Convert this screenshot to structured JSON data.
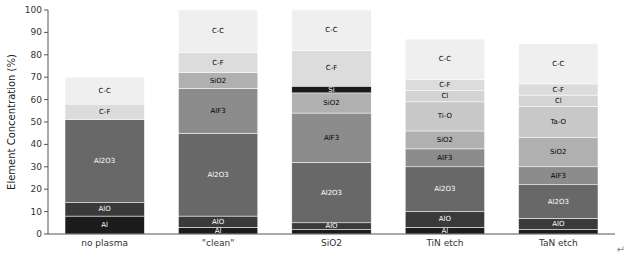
{
  "chart_data": {
    "type": "bar",
    "stacked": true,
    "grid": false,
    "ylabel": "Element Concentration (%)",
    "categories": [
      "no plasma",
      "\"clean\"",
      "SiO2",
      "TiN etch",
      "TaN etch"
    ],
    "ylim": [
      0,
      100
    ],
    "yticks": [
      0,
      10,
      20,
      30,
      40,
      50,
      60,
      70,
      80,
      90,
      100
    ],
    "series": [
      {
        "color": "#1c1c1c",
        "values": [
          8,
          3,
          2,
          3,
          2
        ],
        "labels": [
          "Al",
          "Al",
          null,
          "Al",
          null
        ]
      },
      {
        "color": "#3a3a3a",
        "values": [
          6,
          5,
          3,
          7,
          5
        ],
        "labels": [
          "AlO",
          "AlO",
          "AlO",
          "AlO",
          "AlO"
        ]
      },
      {
        "color": "#686868",
        "values": [
          37,
          37,
          27,
          20,
          15
        ],
        "labels": [
          "Al2O3",
          "Al2O3",
          "Al2O3",
          "Al2O3",
          "Al2O3"
        ]
      },
      {
        "color": "#8c8c8c",
        "values": [
          0,
          20,
          22,
          8,
          8
        ],
        "labels": [
          null,
          "AlF3",
          "AlF3",
          "AlF3",
          "AlF3"
        ]
      },
      {
        "color": "#b0b0b0",
        "values": [
          0,
          7,
          9,
          8,
          13
        ],
        "labels": [
          null,
          "SiO2",
          "SiO2",
          "SiO2",
          "SiO2"
        ]
      },
      {
        "color": "#1a1a1a",
        "values": [
          0,
          0,
          3,
          0,
          0
        ],
        "labels": [
          null,
          null,
          "Si",
          null,
          null
        ]
      },
      {
        "color": "#c8c8c8",
        "values": [
          0,
          0,
          0,
          13,
          14
        ],
        "labels": [
          null,
          null,
          null,
          "Ti-O",
          "Ta-O"
        ]
      },
      {
        "color": "#d4d4d4",
        "values": [
          0,
          0,
          0,
          5,
          5
        ],
        "labels": [
          null,
          null,
          null,
          "Cl",
          "Cl"
        ]
      },
      {
        "color": "#dcdcdc",
        "values": [
          7,
          9,
          16,
          5,
          5
        ],
        "labels": [
          "C-F",
          "C-F",
          "C-F",
          "C-F",
          "C-F"
        ]
      },
      {
        "color": "#efefef",
        "values": [
          12,
          19,
          18,
          18,
          18
        ],
        "labels": [
          "C-C",
          "C-C",
          "C-C",
          "C-C",
          "C-C"
        ]
      }
    ],
    "annotations": [
      {
        "text": "↵"
      }
    ]
  }
}
